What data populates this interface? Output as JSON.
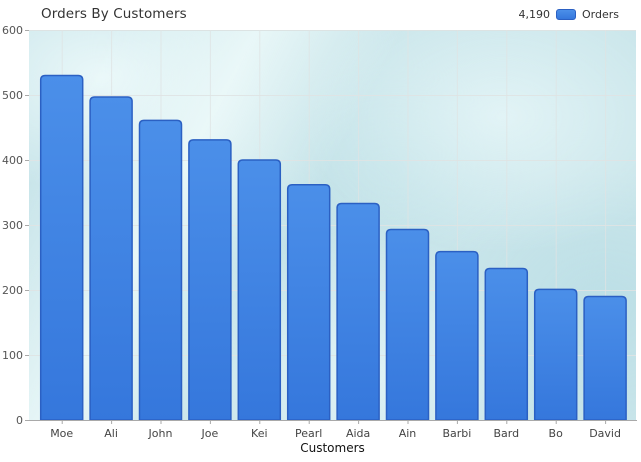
{
  "title": "Orders By Customers",
  "legend": {
    "total": "4,190",
    "label": "Orders"
  },
  "chart_data": {
    "type": "bar",
    "title": "Orders By Customers",
    "xlabel": "Customers",
    "ylabel": "",
    "categories": [
      "Moe",
      "Ali",
      "John",
      "Joe",
      "Kei",
      "Pearl",
      "Aida",
      "Ain",
      "Barbi",
      "Bard",
      "Bo",
      "David"
    ],
    "values": [
      530,
      497,
      461,
      431,
      400,
      362,
      333,
      293,
      259,
      233,
      201,
      190
    ],
    "series_name": "Orders",
    "series_total": "4,190",
    "ylim": [
      0,
      600
    ],
    "yticks": [
      0,
      100,
      200,
      300,
      400,
      500,
      600
    ],
    "grid": true,
    "legend_position": "top-right",
    "colors": {
      "bar_fill_top": "#4b8fe9",
      "bar_fill_bottom": "#3577dc",
      "bar_border": "#2b60c3",
      "plot_background": "#c9e5ea",
      "gridline": "#dfe3e3",
      "axis_line": "#a9a9a9",
      "ytick_label": "#555555",
      "xtick_label": "#444444",
      "axis_title": "#111111",
      "chart_title": "#333333"
    }
  }
}
